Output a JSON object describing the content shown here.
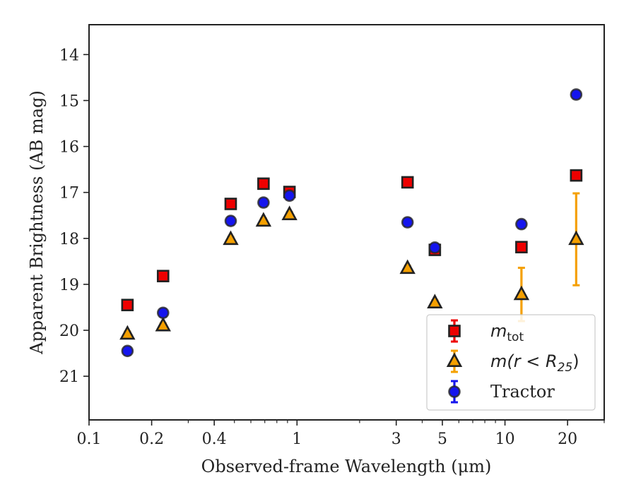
{
  "chart_data": {
    "type": "scatter",
    "title": "",
    "xlabel": "Observed-frame Wavelength (μm)",
    "ylabel": "Apparent Brightness (AB mag)",
    "x_scale": "log",
    "xlim": [
      0.1,
      30
    ],
    "ylim": [
      21.95,
      13.35
    ],
    "y_inverted": true,
    "grid": false,
    "legend_position": "lower-right",
    "x_ticks": [
      0.1,
      0.2,
      0.4,
      1,
      3,
      5,
      10,
      20
    ],
    "x_tick_labels": [
      "0.1",
      "0.2",
      "0.4",
      "1",
      "3",
      "5",
      "10",
      "20"
    ],
    "y_ticks": [
      14,
      15,
      16,
      17,
      18,
      19,
      20,
      21
    ],
    "y_tick_labels": [
      "14",
      "15",
      "16",
      "17",
      "18",
      "19",
      "20",
      "21"
    ],
    "series": [
      {
        "name": "m_tot",
        "legend_label": "m",
        "legend_sub": "tot",
        "marker": "square",
        "color": "#ee0000",
        "points": [
          {
            "x": 0.153,
            "y": 19.45,
            "err": 0.05
          },
          {
            "x": 0.227,
            "y": 18.82,
            "err": 0.05
          },
          {
            "x": 0.48,
            "y": 17.25,
            "err": 0.05
          },
          {
            "x": 0.69,
            "y": 16.81,
            "err": 0.05
          },
          {
            "x": 0.92,
            "y": 16.99,
            "err": 0.08
          },
          {
            "x": 3.4,
            "y": 16.78,
            "err": 0.05
          },
          {
            "x": 4.6,
            "y": 18.25,
            "err": 0.08
          },
          {
            "x": 12.0,
            "y": 18.19,
            "err": 0.05
          },
          {
            "x": 22.0,
            "y": 16.63,
            "err": 0.05
          }
        ]
      },
      {
        "name": "m(r < R25)",
        "legend_label": "m(r < R",
        "legend_sub": "25",
        "legend_tail": ")",
        "marker": "triangle",
        "color": "#f5a000",
        "points": [
          {
            "x": 0.153,
            "y": 20.08,
            "err": 0.05
          },
          {
            "x": 0.227,
            "y": 19.9,
            "err": 0.05
          },
          {
            "x": 0.48,
            "y": 18.02,
            "err": 0.05
          },
          {
            "x": 0.69,
            "y": 17.62,
            "err": 0.05
          },
          {
            "x": 0.92,
            "y": 17.48,
            "err": 0.05
          },
          {
            "x": 3.4,
            "y": 18.65,
            "err": 0.05
          },
          {
            "x": 4.6,
            "y": 19.4,
            "err": 0.05
          },
          {
            "x": 12.0,
            "y": 19.22,
            "err": 0.58
          },
          {
            "x": 22.0,
            "y": 18.02,
            "err": 1.0
          }
        ]
      },
      {
        "name": "Tractor",
        "legend_label": "Tractor",
        "marker": "circle",
        "color": "#1515ee",
        "points": [
          {
            "x": 0.153,
            "y": 20.45,
            "err": 0.08
          },
          {
            "x": 0.227,
            "y": 19.62,
            "err": 0.08
          },
          {
            "x": 0.48,
            "y": 17.62,
            "err": 0.08
          },
          {
            "x": 0.69,
            "y": 17.22,
            "err": 0.08
          },
          {
            "x": 0.92,
            "y": 17.07,
            "err": 0.08
          },
          {
            "x": 3.4,
            "y": 17.65,
            "err": 0.08
          },
          {
            "x": 4.6,
            "y": 18.2,
            "err": 0.08
          },
          {
            "x": 12.0,
            "y": 17.69,
            "err": 0.08
          },
          {
            "x": 22.0,
            "y": 14.87,
            "err": 0.08
          }
        ]
      }
    ]
  }
}
